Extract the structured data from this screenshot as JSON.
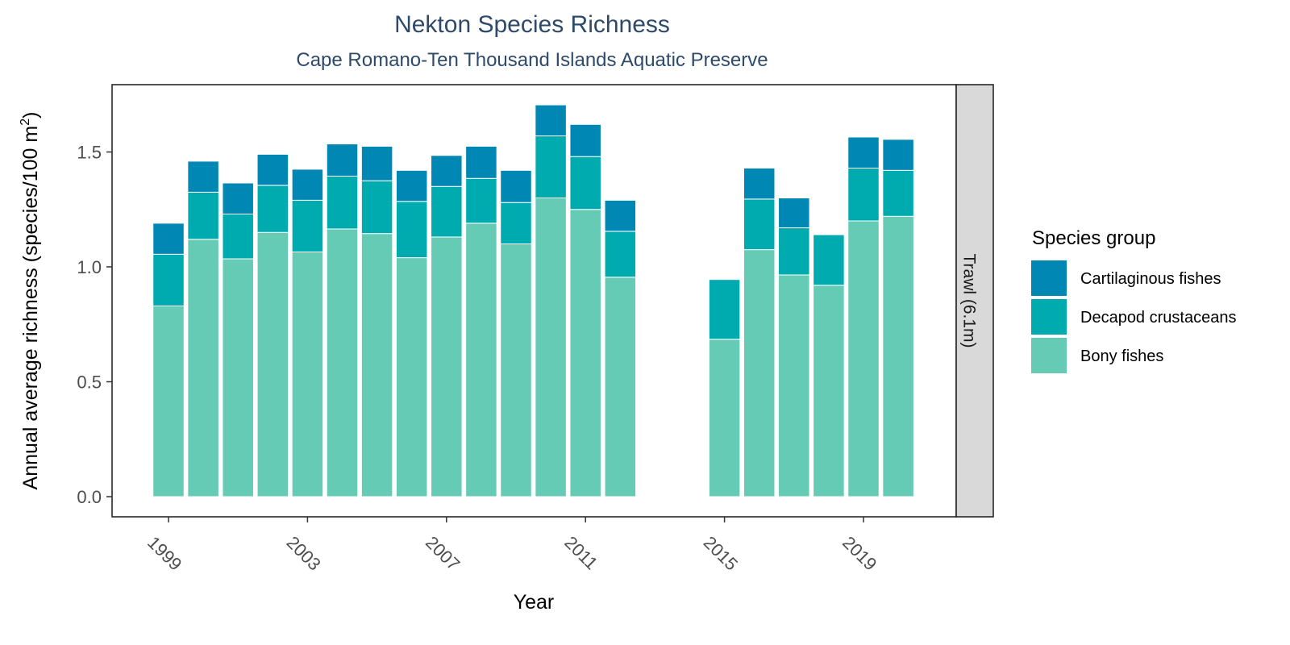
{
  "chart_data": {
    "type": "bar",
    "stacked": true,
    "title": "Nekton Species Richness",
    "subtitle": "Cape Romano-Ten Thousand Islands Aquatic Preserve",
    "xlabel": "Year",
    "ylabel": "Annual average richness (species/100 m",
    "ylabel_superscript": "2",
    "ylabel_close": ")",
    "facet_label": "Trawl (6.1m)",
    "xlim": [
      1998,
      2021
    ],
    "ylim": [
      0,
      1.75
    ],
    "x_ticks": [
      1999,
      2003,
      2007,
      2011,
      2015,
      2019
    ],
    "y_ticks": [
      "0.0",
      "0.5",
      "1.0",
      "1.5"
    ],
    "grid": false,
    "legend": {
      "title": "Species group",
      "position": "right",
      "entries": [
        {
          "label": "Cartilaginous fishes",
          "color": "#0087b3"
        },
        {
          "label": "Decapod crustaceans",
          "color": "#00abb0"
        },
        {
          "label": "Bony fishes",
          "color": "#66cbb4"
        }
      ]
    },
    "x": [
      1999,
      2000,
      2001,
      2002,
      2003,
      2004,
      2005,
      2006,
      2007,
      2008,
      2009,
      2010,
      2011,
      2012,
      2015,
      2016,
      2017,
      2018,
      2019,
      2020
    ],
    "series": [
      {
        "name": "Bony fishes",
        "color": "#66cbb4",
        "values": [
          0.83,
          1.12,
          1.035,
          1.15,
          1.065,
          1.165,
          1.145,
          1.04,
          1.13,
          1.19,
          1.1,
          1.3,
          1.25,
          0.955,
          0.685,
          1.075,
          0.965,
          0.92,
          1.2,
          1.22
        ]
      },
      {
        "name": "Decapod crustaceans",
        "color": "#00abb0",
        "values": [
          0.225,
          0.205,
          0.195,
          0.205,
          0.225,
          0.23,
          0.23,
          0.245,
          0.22,
          0.195,
          0.18,
          0.27,
          0.23,
          0.2,
          0.26,
          0.22,
          0.205,
          0.22,
          0.23,
          0.2
        ]
      },
      {
        "name": "Cartilaginous fishes",
        "color": "#0087b3",
        "values": [
          0.135,
          0.135,
          0.135,
          0.135,
          0.135,
          0.14,
          0.15,
          0.135,
          0.135,
          0.14,
          0.14,
          0.135,
          0.14,
          0.135,
          0,
          0.135,
          0.13,
          0,
          0.135,
          0.135
        ]
      }
    ]
  }
}
